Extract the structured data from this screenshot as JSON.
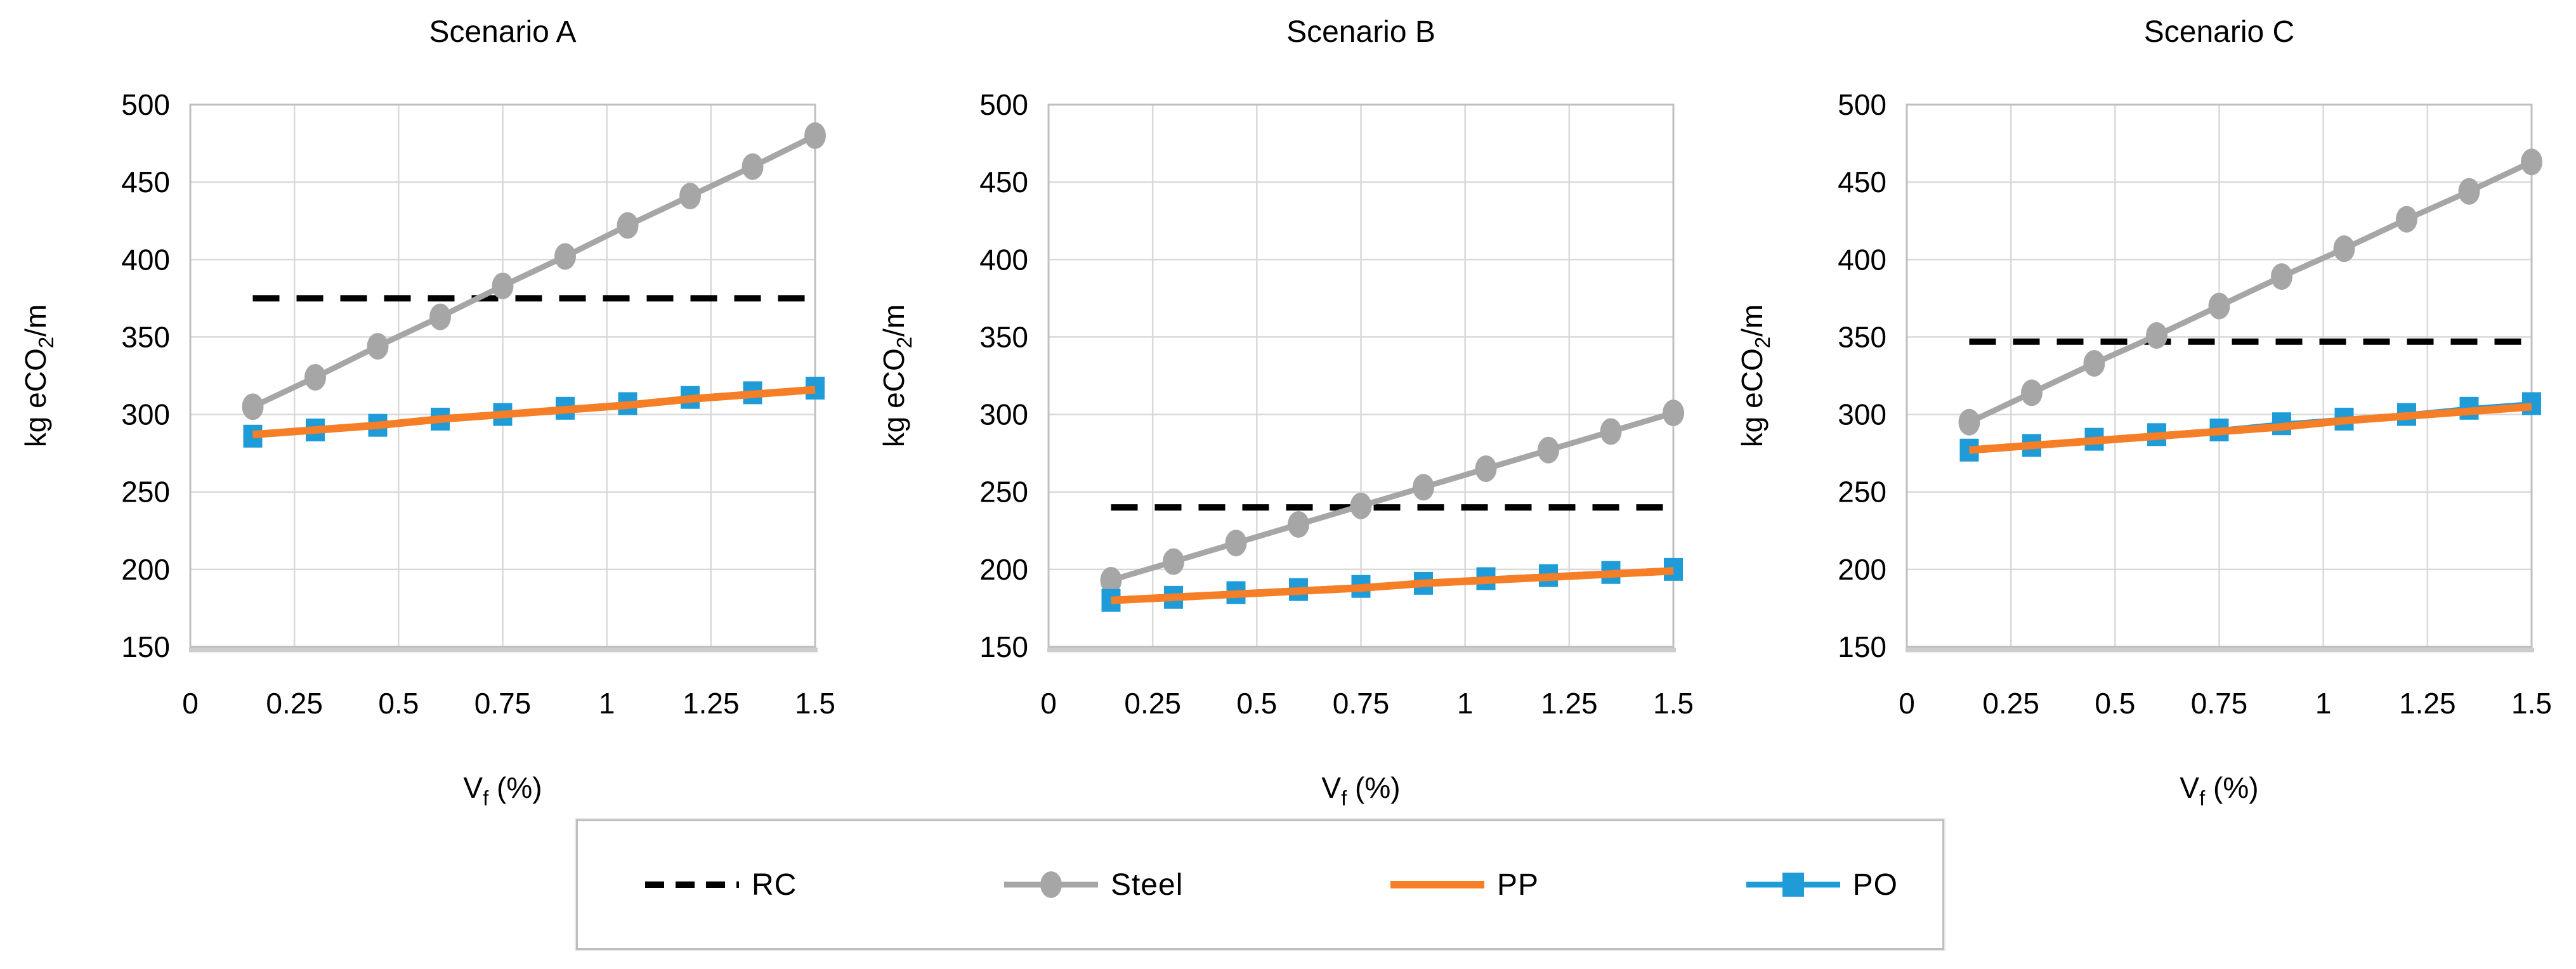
{
  "colors": {
    "rc": "#000000",
    "steel": "#a6a6a6",
    "pp": "#f57e27",
    "po": "#1f9cd8",
    "grid": "#d9d9d9",
    "plot_border": "#bfbfbf",
    "text": "#000000"
  },
  "legend": {
    "items": [
      {
        "label": "RC",
        "color": "#000000",
        "dash": true,
        "marker": "none"
      },
      {
        "label": "Steel",
        "color": "#a6a6a6",
        "dash": false,
        "marker": "circle"
      },
      {
        "label": "PP",
        "color": "#f57e27",
        "dash": false,
        "marker": "none"
      },
      {
        "label": "PO",
        "color": "#1f9cd8",
        "dash": false,
        "marker": "square"
      }
    ]
  },
  "chart_data": [
    {
      "type": "line",
      "title": "Scenario A",
      "xlabel": "Vf (%)",
      "ylabel": "kg eCO2/m",
      "xlim": [
        0,
        1.5
      ],
      "ylim": [
        150,
        500
      ],
      "xticks": [
        "0",
        "0.25",
        "0.5",
        "0.75",
        "1",
        "1.25",
        "1.5"
      ],
      "yticks": [
        500,
        450,
        400,
        350,
        300,
        250,
        200,
        150
      ],
      "grid": true,
      "legend_position": "bottom-shared",
      "x": [
        0.15,
        0.3,
        0.45,
        0.6,
        0.75,
        0.9,
        1.05,
        1.2,
        1.35,
        1.5
      ],
      "series": [
        {
          "name": "RC",
          "type": "hline",
          "value": 375
        },
        {
          "name": "Steel",
          "values": [
            305,
            324,
            344,
            363,
            383,
            402,
            422,
            441,
            460,
            480
          ]
        },
        {
          "name": "PO",
          "values": [
            286,
            290,
            293,
            297,
            300,
            304,
            307,
            311,
            314,
            317
          ]
        },
        {
          "name": "PP",
          "values": [
            287,
            290,
            293,
            297,
            300,
            303,
            306,
            310,
            313,
            316
          ]
        }
      ]
    },
    {
      "type": "line",
      "title": "Scenario B",
      "xlabel": "Vf (%)",
      "ylabel": "kg eCO2/m",
      "xlim": [
        0,
        1.5
      ],
      "ylim": [
        150,
        500
      ],
      "xticks": [
        "0",
        "0.25",
        "0.5",
        "0.75",
        "1",
        "1.25",
        "1.5"
      ],
      "yticks": [
        500,
        450,
        400,
        350,
        300,
        250,
        200,
        150
      ],
      "grid": true,
      "legend_position": "bottom-shared",
      "x": [
        0.15,
        0.3,
        0.45,
        0.6,
        0.75,
        0.9,
        1.05,
        1.2,
        1.35,
        1.5
      ],
      "series": [
        {
          "name": "RC",
          "type": "hline",
          "value": 240
        },
        {
          "name": "Steel",
          "values": [
            193,
            205,
            217,
            229,
            241,
            253,
            265,
            277,
            289,
            301
          ]
        },
        {
          "name": "PO",
          "values": [
            180,
            182,
            185,
            187,
            189,
            191,
            194,
            196,
            198,
            200
          ]
        },
        {
          "name": "PP",
          "values": [
            180,
            182,
            184,
            186,
            188,
            191,
            193,
            195,
            197,
            199
          ]
        }
      ]
    },
    {
      "type": "line",
      "title": "Scenario C",
      "xlabel": "Vf (%)",
      "ylabel": "kg eCO2/m",
      "xlim": [
        0,
        1.5
      ],
      "ylim": [
        150,
        500
      ],
      "xticks": [
        "0",
        "0.25",
        "0.5",
        "0.75",
        "1",
        "1.25",
        "1.5"
      ],
      "yticks": [
        500,
        450,
        400,
        350,
        300,
        250,
        200,
        150
      ],
      "grid": true,
      "legend_position": "bottom-shared",
      "x": [
        0.15,
        0.3,
        0.45,
        0.6,
        0.75,
        0.9,
        1.05,
        1.2,
        1.35,
        1.5
      ],
      "series": [
        {
          "name": "RC",
          "type": "hline",
          "value": 347
        },
        {
          "name": "Steel",
          "values": [
            295,
            314,
            333,
            351,
            370,
            389,
            407,
            426,
            444,
            463
          ]
        },
        {
          "name": "PO",
          "values": [
            277,
            280,
            284,
            287,
            290,
            294,
            297,
            300,
            304,
            307
          ]
        },
        {
          "name": "PP",
          "values": [
            277,
            280,
            283,
            286,
            289,
            292,
            296,
            299,
            302,
            305
          ]
        }
      ]
    }
  ]
}
